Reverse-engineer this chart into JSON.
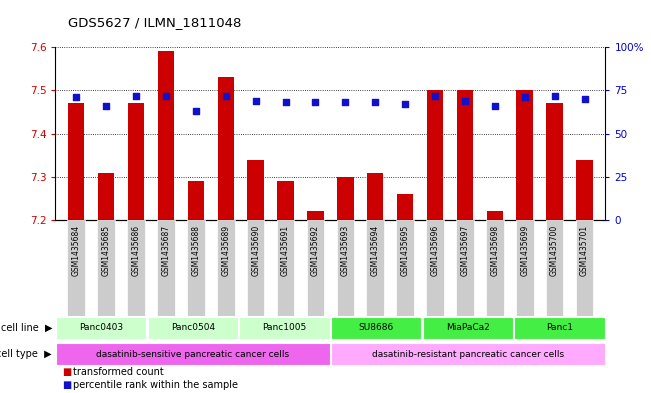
{
  "title": "GDS5627 / ILMN_1811048",
  "samples": [
    "GSM1435684",
    "GSM1435685",
    "GSM1435686",
    "GSM1435687",
    "GSM1435688",
    "GSM1435689",
    "GSM1435690",
    "GSM1435691",
    "GSM1435692",
    "GSM1435693",
    "GSM1435694",
    "GSM1435695",
    "GSM1435696",
    "GSM1435697",
    "GSM1435698",
    "GSM1435699",
    "GSM1435700",
    "GSM1435701"
  ],
  "bar_values": [
    7.47,
    7.31,
    7.47,
    7.59,
    7.29,
    7.53,
    7.34,
    7.29,
    7.22,
    7.3,
    7.31,
    7.26,
    7.5,
    7.5,
    7.22,
    7.5,
    7.47,
    7.34
  ],
  "dot_values": [
    71,
    66,
    72,
    72,
    63,
    72,
    69,
    68,
    68,
    68,
    68,
    67,
    72,
    69,
    66,
    71,
    72,
    70
  ],
  "ylim_left": [
    7.2,
    7.6
  ],
  "ylim_right": [
    0,
    100
  ],
  "yticks_left": [
    7.2,
    7.3,
    7.4,
    7.5,
    7.6
  ],
  "yticks_right": [
    0,
    25,
    50,
    75,
    100
  ],
  "ytick_labels_right": [
    "0",
    "25",
    "50",
    "75",
    "100%"
  ],
  "bar_color": "#cc0000",
  "dot_color": "#1111cc",
  "cell_lines": [
    {
      "label": "Panc0403",
      "start": 0,
      "end": 3,
      "color": "#ccffcc"
    },
    {
      "label": "Panc0504",
      "start": 3,
      "end": 6,
      "color": "#ccffcc"
    },
    {
      "label": "Panc1005",
      "start": 6,
      "end": 9,
      "color": "#ccffcc"
    },
    {
      "label": "SU8686",
      "start": 9,
      "end": 12,
      "color": "#44ee44"
    },
    {
      "label": "MiaPaCa2",
      "start": 12,
      "end": 15,
      "color": "#44ee44"
    },
    {
      "label": "Panc1",
      "start": 15,
      "end": 18,
      "color": "#44ee44"
    }
  ],
  "cell_types": [
    {
      "label": "dasatinib-sensitive pancreatic cancer cells",
      "start": 0,
      "end": 9,
      "color": "#ee66ee"
    },
    {
      "label": "dasatinib-resistant pancreatic cancer cells",
      "start": 9,
      "end": 18,
      "color": "#ffaaff"
    }
  ],
  "legend_items": [
    {
      "color": "#cc0000",
      "label": "transformed count"
    },
    {
      "color": "#1111cc",
      "label": "percentile rank within the sample"
    }
  ],
  "bar_width": 0.55,
  "tick_label_color_left": "#cc0000",
  "tick_label_color_right": "#0000cc",
  "sample_box_color": "#cccccc",
  "n_samples": 18
}
